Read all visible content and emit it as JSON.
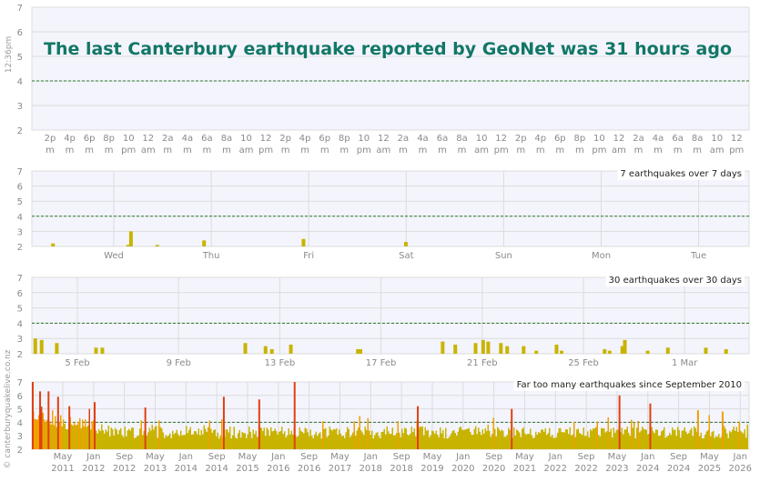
{
  "headline": "The last Canterbury earthquake reported by GeoNet was 31 hours ago",
  "timestamp": "12:36pm",
  "watermark": "© canterburyquakelive.co.nz",
  "colors": {
    "background": "#f4f4fd",
    "threshold_line": "#2a7a2a",
    "bar_small": "#c8b400",
    "bar_mid": "#f0a000",
    "bar_large": "#e04010",
    "headline": "#117766",
    "grid": "#dcdcdc",
    "axis_text": "#8a8a8a"
  },
  "chart_data": [
    {
      "id": "hours",
      "type": "bar",
      "ylim": [
        2,
        7
      ],
      "yticks": [
        "2",
        "3",
        "4",
        "5",
        "6",
        "7"
      ],
      "threshold": 4,
      "xlabels": [
        [
          "2p",
          "m"
        ],
        [
          "4p",
          "m"
        ],
        [
          "6p",
          "m"
        ],
        [
          "8p",
          "m"
        ],
        [
          "10",
          "pm"
        ],
        [
          "12",
          "am"
        ],
        [
          "2a",
          "m"
        ],
        [
          "4a",
          "m"
        ],
        [
          "6a",
          "m"
        ],
        [
          "8a",
          "m"
        ],
        [
          "10",
          "am"
        ],
        [
          "12",
          "pm"
        ],
        [
          "2p",
          "m"
        ],
        [
          "4p",
          "m"
        ],
        [
          "6p",
          "m"
        ],
        [
          "8p",
          "m"
        ],
        [
          "10",
          "pm"
        ],
        [
          "12",
          "am"
        ],
        [
          "2a",
          "m"
        ],
        [
          "4a",
          "m"
        ],
        [
          "6a",
          "m"
        ],
        [
          "8a",
          "m"
        ],
        [
          "10",
          "am"
        ],
        [
          "12",
          "pm"
        ],
        [
          "2p",
          "m"
        ],
        [
          "4p",
          "m"
        ],
        [
          "6p",
          "m"
        ],
        [
          "8p",
          "m"
        ],
        [
          "10",
          "pm"
        ],
        [
          "12",
          "am"
        ],
        [
          "2a",
          "m"
        ],
        [
          "4a",
          "m"
        ],
        [
          "6a",
          "m"
        ],
        [
          "8a",
          "m"
        ],
        [
          "10",
          "am"
        ],
        [
          "12",
          "pm"
        ]
      ],
      "values": []
    },
    {
      "id": "days7",
      "type": "bar",
      "caption": "7 earthquakes over 7 days",
      "ylim": [
        2,
        7
      ],
      "yticks": [
        "2",
        "3",
        "4",
        "5",
        "6",
        "7"
      ],
      "threshold": 4,
      "xlabels": [
        "Wed",
        "Thu",
        "Fri",
        "Sat",
        "Sun",
        "Mon",
        "Tue"
      ],
      "x": [
        0.03,
        0.8,
        0.83,
        1.1,
        1.58,
        2.6,
        3.65
      ],
      "values": [
        2.2,
        2.1,
        3.0,
        2.1,
        2.4,
        2.5,
        2.3
      ]
    },
    {
      "id": "days30",
      "type": "bar",
      "caption": "30 earthquakes over 30 days",
      "ylim": [
        2,
        7
      ],
      "yticks": [
        "2",
        "3",
        "4",
        "5",
        "6",
        "7"
      ],
      "threshold": 4,
      "xlabels": [
        "5 Feb",
        "9 Feb",
        "13 Feb",
        "17 Feb",
        "21 Feb",
        "25 Feb",
        "1 Mar"
      ],
      "x": [
        0.1,
        0.35,
        0.95,
        2.5,
        2.75,
        8.4,
        9.2,
        9.45,
        10.2,
        12.85,
        12.95,
        16.2,
        16.7,
        17.5,
        17.8,
        18.0,
        18.5,
        18.75,
        19.4,
        19.9,
        20.7,
        20.9,
        22.6,
        22.8,
        23.3,
        23.4,
        24.3,
        25.1,
        26.6,
        27.4
      ],
      "values": [
        3.0,
        2.9,
        2.7,
        2.4,
        2.4,
        2.7,
        2.5,
        2.3,
        2.6,
        2.3,
        2.3,
        2.8,
        2.6,
        2.7,
        2.9,
        2.8,
        2.7,
        2.5,
        2.5,
        2.2,
        2.6,
        2.2,
        2.3,
        2.2,
        2.5,
        2.9,
        2.2,
        2.4,
        2.4,
        2.3
      ]
    },
    {
      "id": "since2010",
      "type": "bar",
      "caption": "Far too many earthquakes since September 2010",
      "ylim": [
        2,
        7
      ],
      "yticks": [
        "2",
        "3",
        "4",
        "5",
        "6",
        "7"
      ],
      "threshold": 4,
      "xlabels": [
        [
          "May",
          "2011"
        ],
        [
          "Jan",
          "2012"
        ],
        [
          "Sep",
          "2012"
        ],
        [
          "May",
          "2013"
        ],
        [
          "Jan",
          "2014"
        ],
        [
          "Sep",
          "2014"
        ],
        [
          "May",
          "2015"
        ],
        [
          "Jan",
          "2016"
        ],
        [
          "Sep",
          "2016"
        ],
        [
          "May",
          "2017"
        ],
        [
          "Jan",
          "2018"
        ],
        [
          "Sep",
          "2018"
        ],
        [
          "May",
          "2019"
        ],
        [
          "Jan",
          "2020"
        ],
        [
          "Sep",
          "2020"
        ],
        [
          "May",
          "2021"
        ],
        [
          "Jan",
          "2022"
        ],
        [
          "Sep",
          "2022"
        ],
        [
          "May",
          "2023"
        ],
        [
          "Jan",
          "2024"
        ],
        [
          "Sep",
          "2024"
        ],
        [
          "May",
          "2025"
        ],
        [
          "Jan",
          "2026"
        ]
      ],
      "peaks": [
        {
          "x": 0.0,
          "value": 7.1
        },
        {
          "x": 0.13,
          "value": 6.3
        },
        {
          "x": 0.28,
          "value": 6.3
        },
        {
          "x": 0.45,
          "value": 5.9
        },
        {
          "x": 0.65,
          "value": 5.2
        },
        {
          "x": 1.1,
          "value": 5.5
        },
        {
          "x": 2.65,
          "value": 5.1
        },
        {
          "x": 5.2,
          "value": 5.9
        },
        {
          "x": 6.35,
          "value": 5.7
        },
        {
          "x": 7.5,
          "value": 7.8
        },
        {
          "x": 11.5,
          "value": 5.2
        },
        {
          "x": 14.55,
          "value": 5.0
        },
        {
          "x": 18.05,
          "value": 6.0
        },
        {
          "x": 19.05,
          "value": 5.4
        },
        {
          "x": 20.6,
          "value": 4.9
        },
        {
          "x": 21.4,
          "value": 4.8
        },
        {
          "x": 23.15,
          "value": 4.9
        }
      ]
    }
  ]
}
